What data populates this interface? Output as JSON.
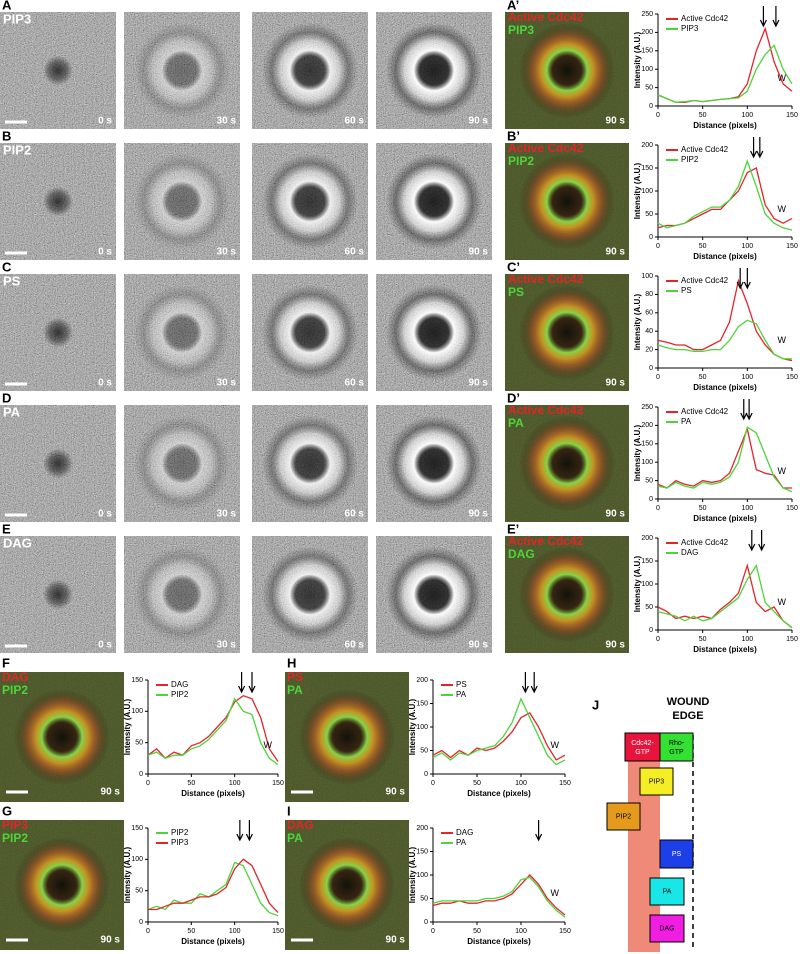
{
  "rows": [
    {
      "label": "A",
      "name": "PIP3",
      "times": [
        "0 s",
        "30 s",
        "60 s",
        "90 s"
      ],
      "merged_label": "A’",
      "merged_channels": [
        "Active Cdc42",
        "PIP3"
      ],
      "merged_time": "90 s"
    },
    {
      "label": "B",
      "name": "PIP2",
      "times": [
        "0 s",
        "30 s",
        "60 s",
        "90 s"
      ],
      "merged_label": "B’",
      "merged_channels": [
        "Active Cdc42",
        "PIP2"
      ],
      "merged_time": "90 s"
    },
    {
      "label": "C",
      "name": "PS",
      "times": [
        "0 s",
        "30 s",
        "60 s",
        "90 s"
      ],
      "merged_label": "C’",
      "merged_channels": [
        "Active Cdc42",
        "PS"
      ],
      "merged_time": "90 s"
    },
    {
      "label": "D",
      "name": "PA",
      "times": [
        "0 s",
        "30 s",
        "60 s",
        "90 s"
      ],
      "merged_label": "D’",
      "merged_channels": [
        "Active Cdc42",
        "PA"
      ],
      "merged_time": "90 s"
    },
    {
      "label": "E",
      "name": "DAG",
      "times": [
        "0 s",
        "30 s",
        "60 s",
        "90 s"
      ],
      "merged_label": "E’",
      "merged_channels": [
        "Active Cdc42",
        "DAG"
      ],
      "merged_time": "90 s"
    }
  ],
  "bottom_panels": [
    {
      "label": "F",
      "channels": [
        "DAG",
        "PIP2"
      ],
      "time": "90 s"
    },
    {
      "label": "G",
      "channels": [
        "PIP3",
        "PIP2"
      ],
      "time": "90 s"
    },
    {
      "label": "H",
      "channels": [
        "PS",
        "PA"
      ],
      "time": "90 s"
    },
    {
      "label": "I",
      "channels": [
        "DAG",
        "PA"
      ],
      "time": "90 s"
    }
  ],
  "diagram": {
    "label": "J",
    "title": [
      "WOUND",
      "EDGE"
    ],
    "boxes": [
      "Cdc42-GTP",
      "Rho-GTP",
      "PIP3",
      "PIP2",
      "PS",
      "PA",
      "DAG"
    ]
  },
  "chart_data": [
    {
      "type": "line",
      "x_label": "Distance (pixels)",
      "y_label": "Intensity (A.U.)",
      "annotation": "W",
      "x": [
        0,
        10,
        20,
        30,
        40,
        50,
        60,
        70,
        80,
        90,
        100,
        110,
        120,
        130,
        140,
        150
      ],
      "xlim": [
        0,
        150
      ],
      "xticks": [
        0,
        50,
        100,
        150
      ],
      "ylim": [
        0,
        250
      ],
      "yticks": [
        0,
        50,
        100,
        150,
        200,
        250
      ],
      "arrows": [
        118,
        132
      ],
      "series": [
        {
          "name": "Active Cdc42",
          "color": "#e3242b",
          "values": [
            30,
            20,
            10,
            10,
            15,
            12,
            15,
            18,
            20,
            25,
            60,
            150,
            210,
            120,
            60,
            40
          ]
        },
        {
          "name": "PIP3",
          "color": "#4ed43a",
          "values": [
            30,
            20,
            10,
            12,
            15,
            12,
            15,
            18,
            20,
            22,
            40,
            100,
            140,
            165,
            100,
            60
          ]
        }
      ]
    },
    {
      "type": "line",
      "x_label": "Distance (pixels)",
      "y_label": "Intensity (A.U.)",
      "annotation": "W",
      "x": [
        0,
        10,
        20,
        30,
        40,
        50,
        60,
        70,
        80,
        90,
        100,
        110,
        120,
        130,
        140,
        150
      ],
      "xlim": [
        0,
        150
      ],
      "xticks": [
        0,
        50,
        100,
        150
      ],
      "ylim": [
        0,
        200
      ],
      "yticks": [
        0,
        50,
        100,
        150,
        200
      ],
      "arrows": [
        107,
        114
      ],
      "series": [
        {
          "name": "Active Cdc42",
          "color": "#e3242b",
          "values": [
            20,
            25,
            25,
            30,
            40,
            50,
            60,
            60,
            80,
            100,
            140,
            150,
            70,
            40,
            30,
            40
          ]
        },
        {
          "name": "PIP2",
          "color": "#4ed43a",
          "values": [
            30,
            20,
            25,
            30,
            45,
            55,
            65,
            65,
            80,
            110,
            165,
            110,
            50,
            30,
            20,
            15
          ]
        }
      ]
    },
    {
      "type": "line",
      "x_label": "Distance (pixels)",
      "y_label": "Intensity (A.U.)",
      "annotation": "W",
      "x": [
        0,
        10,
        20,
        30,
        40,
        50,
        60,
        70,
        80,
        90,
        100,
        110,
        120,
        130,
        140,
        150
      ],
      "xlim": [
        0,
        150
      ],
      "xticks": [
        0,
        50,
        100,
        150
      ],
      "ylim": [
        0,
        100
      ],
      "yticks": [
        0,
        20,
        40,
        60,
        80,
        100
      ],
      "arrows": [
        92,
        100
      ],
      "series": [
        {
          "name": "Active Cdc42",
          "color": "#e3242b",
          "values": [
            30,
            28,
            25,
            25,
            20,
            20,
            25,
            30,
            50,
            95,
            70,
            40,
            25,
            15,
            10,
            8
          ]
        },
        {
          "name": "PS",
          "color": "#4ed43a",
          "values": [
            25,
            22,
            20,
            20,
            18,
            18,
            20,
            20,
            30,
            45,
            52,
            48,
            30,
            15,
            10,
            10
          ]
        }
      ]
    },
    {
      "type": "line",
      "x_label": "Distance (pixels)",
      "y_label": "Intensity (A.U.)",
      "annotation": "W",
      "x": [
        0,
        10,
        20,
        30,
        40,
        50,
        60,
        70,
        80,
        90,
        100,
        110,
        120,
        130,
        140,
        150
      ],
      "xlim": [
        0,
        150
      ],
      "xticks": [
        0,
        50,
        100,
        150
      ],
      "ylim": [
        0,
        250
      ],
      "yticks": [
        0,
        50,
        100,
        150,
        200,
        250
      ],
      "arrows": [
        96,
        102
      ],
      "series": [
        {
          "name": "Active Cdc42",
          "color": "#e3242b",
          "values": [
            40,
            30,
            50,
            40,
            35,
            50,
            45,
            50,
            70,
            130,
            190,
            80,
            70,
            65,
            30,
            30
          ]
        },
        {
          "name": "PA",
          "color": "#4ed43a",
          "values": [
            35,
            30,
            45,
            35,
            30,
            45,
            40,
            45,
            60,
            100,
            195,
            180,
            120,
            60,
            30,
            20
          ]
        }
      ]
    },
    {
      "type": "line",
      "x_label": "Distance (pixels)",
      "y_label": "Intensity (A.U.)",
      "annotation": "W",
      "x": [
        0,
        10,
        20,
        30,
        40,
        50,
        60,
        70,
        80,
        90,
        100,
        110,
        120,
        130,
        140,
        150
      ],
      "xlim": [
        0,
        150
      ],
      "xticks": [
        0,
        50,
        100,
        150
      ],
      "ylim": [
        0,
        200
      ],
      "yticks": [
        0,
        50,
        100,
        150,
        200
      ],
      "arrows": [
        105,
        116
      ],
      "series": [
        {
          "name": "Active Cdc42",
          "color": "#e3242b",
          "values": [
            50,
            40,
            25,
            30,
            25,
            30,
            25,
            45,
            60,
            80,
            140,
            60,
            40,
            50,
            20,
            5
          ]
        },
        {
          "name": "DAG",
          "color": "#4ed43a",
          "values": [
            40,
            35,
            30,
            20,
            30,
            20,
            25,
            40,
            55,
            70,
            110,
            140,
            60,
            40,
            20,
            5
          ]
        }
      ]
    },
    {
      "type": "line",
      "x_label": "Distance (pixels)",
      "y_label": "Intensity (A.U.)",
      "annotation": "W",
      "x": [
        0,
        10,
        20,
        30,
        40,
        50,
        60,
        70,
        80,
        90,
        100,
        110,
        120,
        130,
        140,
        150
      ],
      "xlim": [
        0,
        150
      ],
      "xticks": [
        0,
        50,
        100,
        150
      ],
      "ylim": [
        0,
        150
      ],
      "yticks": [
        0,
        50,
        100,
        150
      ],
      "arrows": [
        108,
        120
      ],
      "series": [
        {
          "name": "DAG",
          "color": "#e3242b",
          "values": [
            30,
            40,
            25,
            35,
            30,
            45,
            50,
            60,
            75,
            90,
            115,
            125,
            120,
            90,
            40,
            20
          ]
        },
        {
          "name": "PIP2",
          "color": "#4ed43a",
          "values": [
            30,
            35,
            25,
            30,
            30,
            40,
            45,
            55,
            70,
            85,
            120,
            100,
            95,
            50,
            25,
            15
          ]
        }
      ]
    },
    {
      "type": "line",
      "x_label": "Distance (pixels)",
      "y_label": "Intensity (A.U.)",
      "x": [
        0,
        10,
        20,
        30,
        40,
        50,
        60,
        70,
        80,
        90,
        100,
        110,
        120,
        130,
        140,
        150
      ],
      "xlim": [
        0,
        150
      ],
      "xticks": [
        0,
        50,
        100,
        150
      ],
      "ylim": [
        0,
        150
      ],
      "yticks": [
        0,
        50,
        100,
        150
      ],
      "arrows": [
        106,
        117
      ],
      "series": [
        {
          "name": "PIP2",
          "color": "#4ed43a",
          "values": [
            20,
            25,
            20,
            35,
            30,
            30,
            45,
            40,
            50,
            60,
            95,
            90,
            60,
            30,
            15,
            10
          ]
        },
        {
          "name": "PIP3",
          "color": "#e3242b",
          "values": [
            20,
            20,
            25,
            30,
            30,
            35,
            40,
            40,
            45,
            55,
            85,
            100,
            90,
            60,
            30,
            15
          ]
        }
      ]
    },
    {
      "type": "line",
      "x_label": "Distance (pixels)",
      "y_label": "Intensity (A.U.)",
      "annotation": "W",
      "x": [
        0,
        10,
        20,
        30,
        40,
        50,
        60,
        70,
        80,
        90,
        100,
        110,
        120,
        130,
        140,
        150
      ],
      "xlim": [
        0,
        150
      ],
      "xticks": [
        0,
        50,
        100,
        150
      ],
      "ylim": [
        0,
        200
      ],
      "yticks": [
        0,
        50,
        100,
        150,
        200
      ],
      "arrows": [
        105,
        115
      ],
      "series": [
        {
          "name": "PS",
          "color": "#e3242b",
          "values": [
            40,
            50,
            35,
            50,
            40,
            55,
            50,
            55,
            70,
            90,
            120,
            130,
            100,
            60,
            30,
            40
          ]
        },
        {
          "name": "PA",
          "color": "#4ed43a",
          "values": [
            35,
            45,
            30,
            45,
            40,
            50,
            55,
            60,
            80,
            110,
            160,
            120,
            80,
            40,
            20,
            30
          ]
        }
      ]
    },
    {
      "type": "line",
      "x_label": "Distance (pixels)",
      "y_label": "Intensity (A.U.)",
      "annotation": "W",
      "x": [
        0,
        10,
        20,
        30,
        40,
        50,
        60,
        70,
        80,
        90,
        100,
        110,
        120,
        130,
        140,
        150
      ],
      "xlim": [
        0,
        150
      ],
      "xticks": [
        0,
        50,
        100,
        150
      ],
      "ylim": [
        0,
        200
      ],
      "yticks": [
        0,
        50,
        100,
        150,
        200
      ],
      "arrows": [
        120
      ],
      "series": [
        {
          "name": "DAG",
          "color": "#e3242b",
          "values": [
            35,
            40,
            40,
            45,
            40,
            40,
            45,
            45,
            50,
            60,
            80,
            100,
            80,
            50,
            30,
            15
          ]
        },
        {
          "name": "PA",
          "color": "#4ed43a",
          "values": [
            40,
            45,
            45,
            45,
            45,
            45,
            50,
            50,
            55,
            65,
            90,
            95,
            75,
            45,
            25,
            10
          ]
        }
      ]
    }
  ]
}
